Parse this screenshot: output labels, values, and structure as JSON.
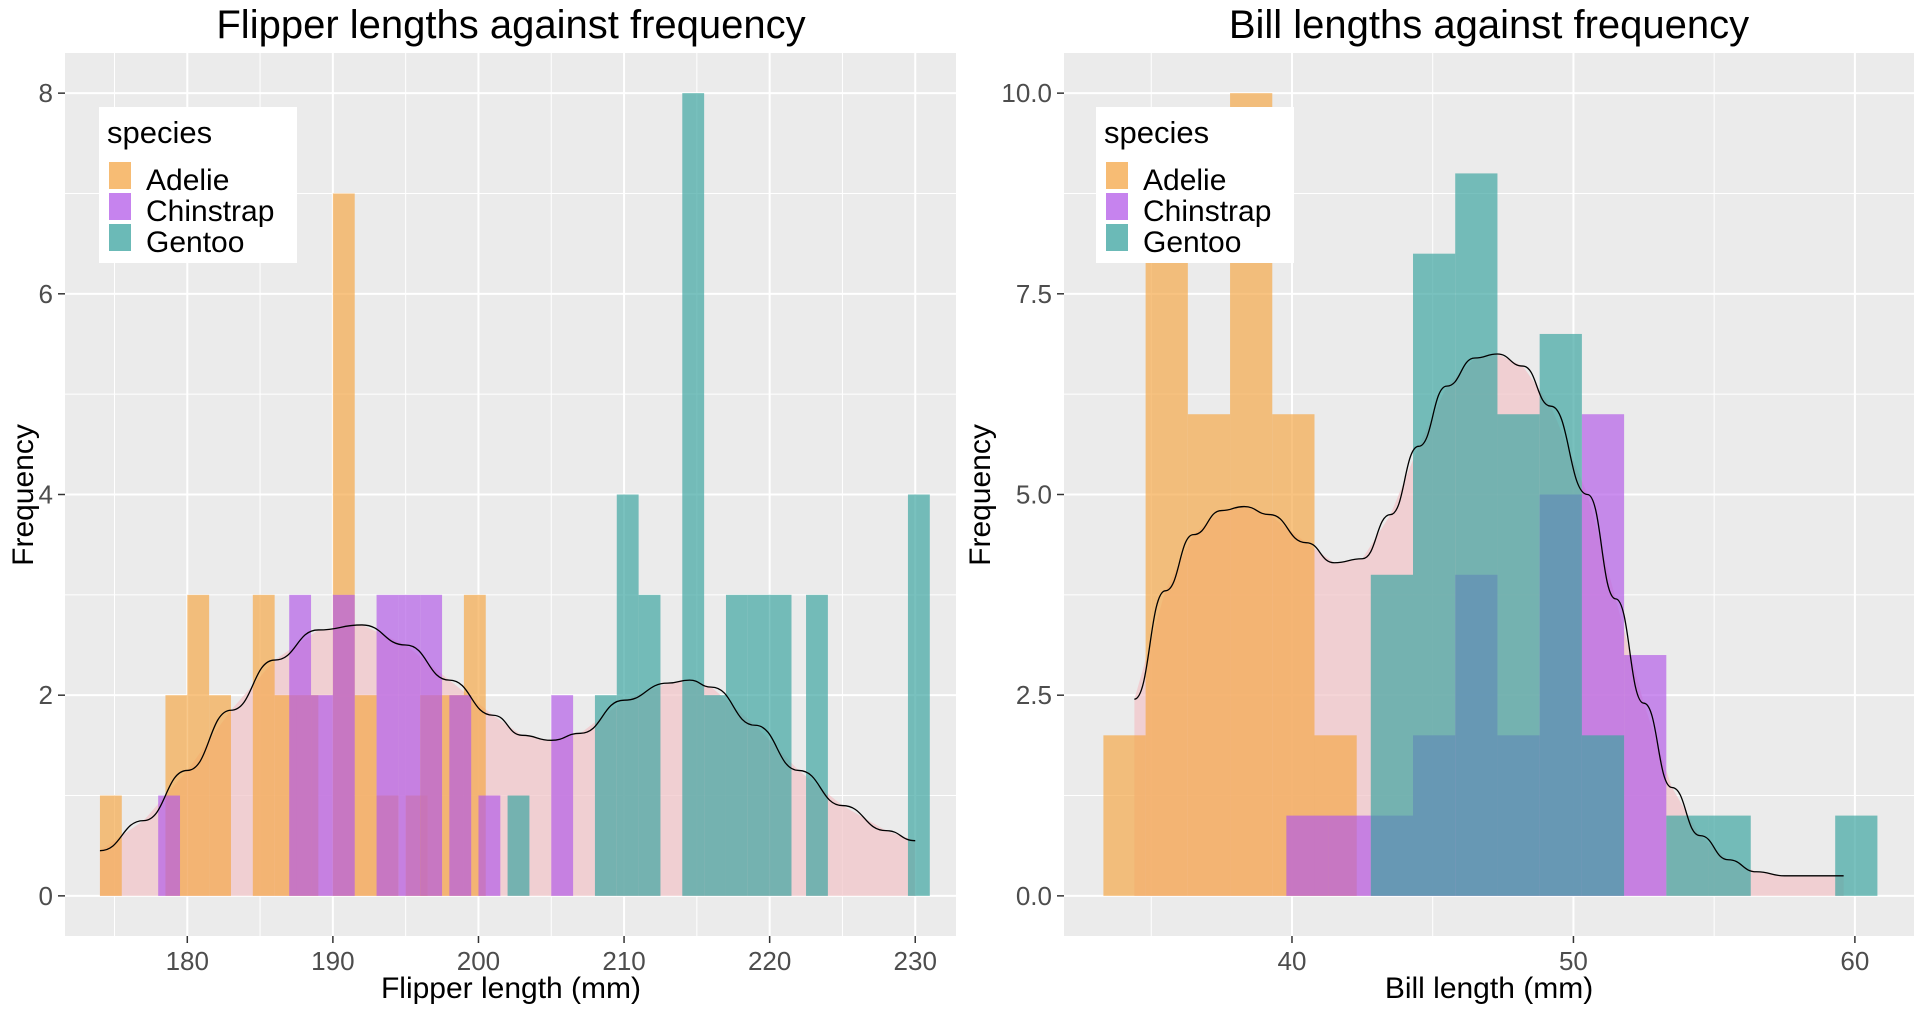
{
  "colors": {
    "panel_bg": "#ebebeb",
    "grid": "#ffffff",
    "axis_text": "#4d4d4d",
    "Adelie": "#f4a646",
    "Chinstrap": "#b35ae8",
    "Gentoo": "#3aa39f",
    "density_fill": "#f2c6c9",
    "density_line": "#000000"
  },
  "legend": {
    "title": "species",
    "items": [
      "Adelie",
      "Chinstrap",
      "Gentoo"
    ]
  },
  "chart_data": [
    {
      "type": "histogram",
      "title": "Flipper lengths against frequency",
      "xlabel": "Flipper length (mm)",
      "ylabel": "Frequency",
      "xlim": [
        171.6,
        232.8
      ],
      "ylim": [
        -0.4,
        8.4
      ],
      "xticks": [
        180,
        190,
        200,
        210,
        220,
        230
      ],
      "yticks": [
        0,
        2,
        4,
        6,
        8
      ],
      "ytick_labels": [
        "0",
        "2",
        "4",
        "6",
        "8"
      ],
      "legend_position": "top-left",
      "bin_width": 1.5,
      "series": [
        {
          "name": "Adelie",
          "bin_starts": [
            174,
            178.5,
            180,
            181.5,
            184.5,
            186,
            187.5,
            190,
            191.5,
            193,
            195,
            196,
            197.5,
            199
          ],
          "values": [
            1,
            2,
            3,
            2,
            3,
            2,
            2,
            7,
            2,
            1,
            1,
            2,
            2,
            3
          ]
        },
        {
          "name": "Chinstrap",
          "bin_starts": [
            178,
            187,
            188.5,
            190,
            193,
            194.5,
            196,
            198,
            200,
            205
          ],
          "values": [
            1,
            3,
            2,
            3,
            3,
            3,
            3,
            2,
            1,
            2
          ]
        },
        {
          "name": "Gentoo",
          "bin_starts": [
            202,
            208,
            209.5,
            211,
            214,
            215.5,
            217,
            218.5,
            220,
            222.5,
            229.5
          ],
          "values": [
            1,
            2,
            4,
            3,
            8,
            2,
            3,
            3,
            3,
            3,
            4
          ]
        }
      ],
      "density": {
        "x": [
          174,
          177,
          180,
          183,
          186,
          189,
          192,
          195,
          198,
          201,
          203,
          205,
          207,
          210,
          213,
          214.5,
          216,
          219,
          222,
          225,
          228,
          230
        ],
        "y": [
          0.45,
          0.75,
          1.25,
          1.85,
          2.35,
          2.65,
          2.7,
          2.5,
          2.15,
          1.8,
          1.6,
          1.55,
          1.62,
          1.95,
          2.12,
          2.15,
          2.08,
          1.7,
          1.25,
          0.9,
          0.65,
          0.55
        ]
      }
    },
    {
      "type": "histogram",
      "title": "Bill lengths against frequency",
      "xlabel": "Bill length (mm)",
      "ylabel": "Frequency",
      "xlim": [
        31.9,
        62.1
      ],
      "ylim": [
        -0.5,
        10.5
      ],
      "xticks": [
        40,
        50,
        60
      ],
      "yticks": [
        0,
        2.5,
        5,
        7.5,
        10
      ],
      "ytick_labels": [
        "0.0",
        "2.5",
        "5.0",
        "7.5",
        "10.0"
      ],
      "legend_position": "top-left",
      "bin_width": 1.5,
      "series": [
        {
          "name": "Adelie",
          "bin_starts": [
            33.3,
            34.8,
            36.3,
            37.8,
            39.3,
            40.8
          ],
          "values": [
            2,
            8,
            6,
            10,
            6,
            2
          ]
        },
        {
          "name": "Chinstrap",
          "bin_starts": [
            39.8,
            41.3,
            42.8,
            44.3,
            45.8,
            47.3,
            48.8,
            50.3,
            51.8
          ],
          "values": [
            1,
            1,
            1,
            2,
            4,
            2,
            5,
            6,
            3
          ]
        },
        {
          "name": "Gentoo",
          "bin_starts": [
            42.8,
            44.3,
            45.8,
            47.3,
            48.8,
            50.3,
            51.8,
            53.3,
            54.8,
            59.3
          ],
          "values": [
            4,
            8,
            9,
            6,
            7,
            2,
            0,
            1,
            1,
            1
          ]
        }
      ],
      "density": {
        "x": [
          34.4,
          35.5,
          36.5,
          37.5,
          38.3,
          39.2,
          40.5,
          41.5,
          42.5,
          43.5,
          44.5,
          45.5,
          46.5,
          47.3,
          48.2,
          49.2,
          50.5,
          51.5,
          52.5,
          53.5,
          54.5,
          55.5,
          56.5,
          57.5,
          58.5,
          59.6
        ],
        "y": [
          2.45,
          3.8,
          4.5,
          4.8,
          4.85,
          4.75,
          4.4,
          4.15,
          4.2,
          4.75,
          5.6,
          6.35,
          6.7,
          6.75,
          6.6,
          6.1,
          5.0,
          3.7,
          2.4,
          1.35,
          0.75,
          0.45,
          0.3,
          0.25,
          0.25,
          0.25
        ]
      }
    }
  ]
}
